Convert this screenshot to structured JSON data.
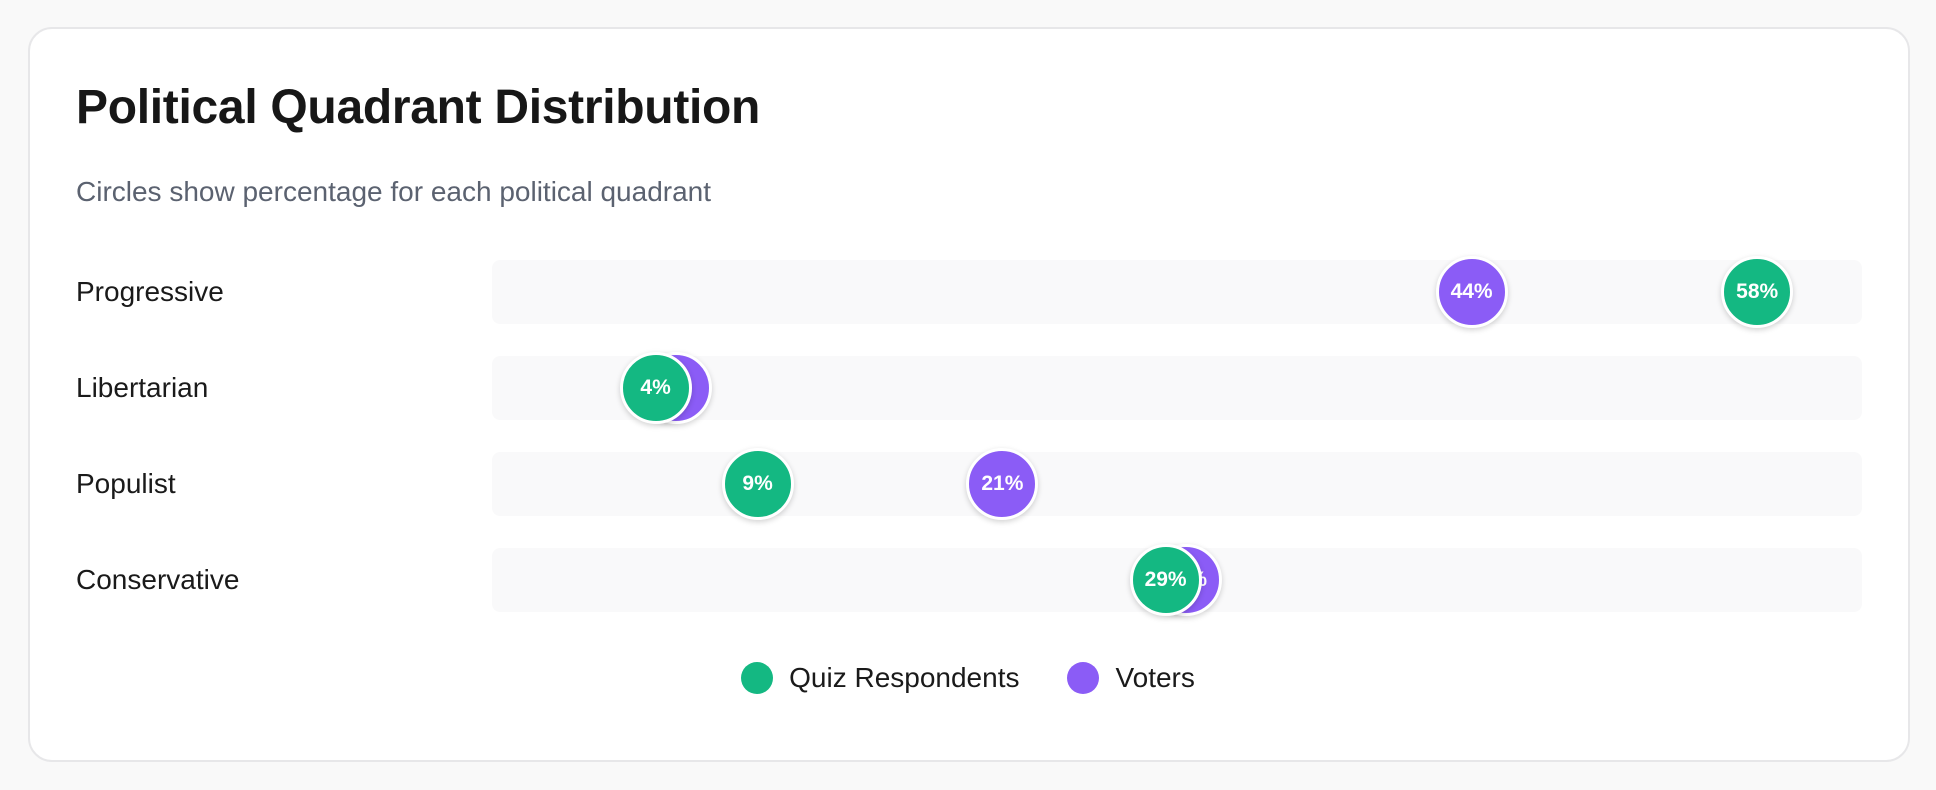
{
  "card": {
    "title": "Political Quadrant Distribution",
    "subtitle": "Circles show percentage for each political quadrant"
  },
  "colors": {
    "quiz": "#14b882",
    "voters": "#8b5cf6"
  },
  "chart_data": {
    "type": "scatter",
    "categories": [
      "Progressive",
      "Libertarian",
      "Populist",
      "Conservative"
    ],
    "series": [
      {
        "name": "Quiz Respondents",
        "values": [
          58,
          4,
          9,
          29
        ],
        "labels": [
          "58%",
          "4%",
          "9%",
          "29%"
        ]
      },
      {
        "name": "Voters",
        "values": [
          44,
          5,
          21,
          30
        ],
        "labels": [
          "44%",
          "5%",
          "21%",
          "30%"
        ]
      }
    ],
    "xlim": [
      0,
      62
    ],
    "legend_position": "bottom-center"
  }
}
